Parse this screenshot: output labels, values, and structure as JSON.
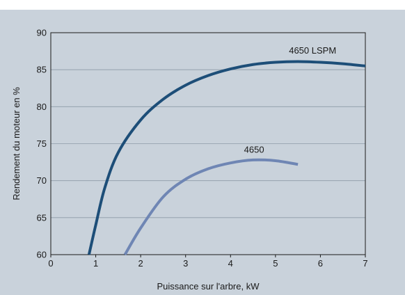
{
  "chart_data": {
    "type": "line",
    "title": "",
    "xlabel": "Puissance sur l'arbre, kW",
    "ylabel": "Rendement du moteur en %",
    "xlim": [
      0,
      7
    ],
    "ylim": [
      60,
      90
    ],
    "x_ticks": [
      0,
      1,
      2,
      3,
      4,
      5,
      6,
      7
    ],
    "y_ticks": [
      60,
      65,
      70,
      75,
      80,
      85,
      90
    ],
    "grid": "horizontal",
    "legend": "inline labels",
    "series": [
      {
        "name": "4650 LSPM",
        "color": "#1d4e78",
        "label_at": [
          5.3,
          87.2
        ],
        "points": [
          [
            0.85,
            60
          ],
          [
            1.0,
            64
          ],
          [
            1.2,
            69
          ],
          [
            1.5,
            73.8
          ],
          [
            2.0,
            78.2
          ],
          [
            2.5,
            81
          ],
          [
            3.0,
            82.9
          ],
          [
            3.5,
            84.2
          ],
          [
            4.0,
            85.1
          ],
          [
            4.5,
            85.7
          ],
          [
            5.0,
            86.0
          ],
          [
            5.5,
            86.1
          ],
          [
            6.0,
            86.0
          ],
          [
            6.5,
            85.8
          ],
          [
            7.0,
            85.5
          ]
        ]
      },
      {
        "name": "4650",
        "color": "#6f86b4",
        "label_at": [
          4.3,
          73.8
        ],
        "points": [
          [
            1.65,
            60
          ],
          [
            2.0,
            63.6
          ],
          [
            2.5,
            67.8
          ],
          [
            3.0,
            70.2
          ],
          [
            3.5,
            71.6
          ],
          [
            4.0,
            72.4
          ],
          [
            4.5,
            72.8
          ],
          [
            5.0,
            72.7
          ],
          [
            5.5,
            72.2
          ]
        ]
      }
    ]
  }
}
